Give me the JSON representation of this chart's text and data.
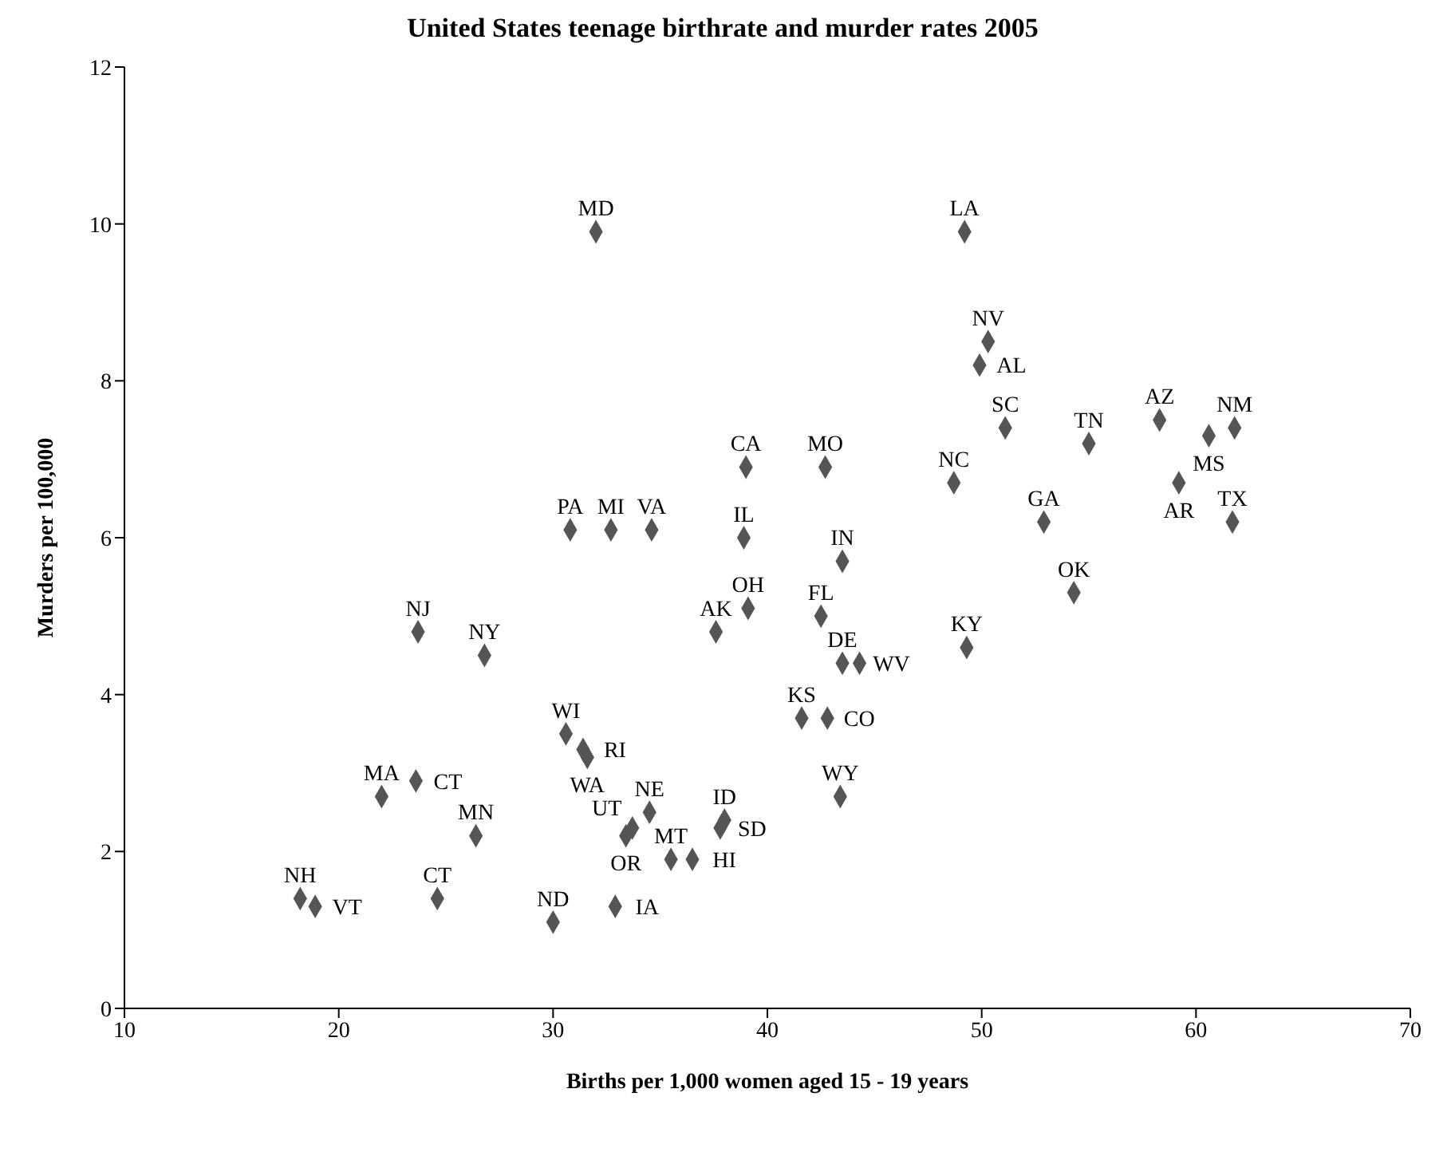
{
  "chart_data": {
    "type": "scatter",
    "title": "United States teenage birthrate and murder rates 2005",
    "xlabel": "Births per 1,000 women aged 15 - 19 years",
    "ylabel": "Murders per 100,000",
    "xlim": [
      10,
      70
    ],
    "xticks": [
      10,
      20,
      30,
      40,
      50,
      60,
      70
    ],
    "ylim": [
      0,
      12
    ],
    "yticks": [
      0,
      2,
      4,
      6,
      8,
      10,
      12
    ],
    "grid": false,
    "legend": false,
    "marker": "diamond",
    "series": [
      {
        "color": "#555555",
        "x": [
          32.0,
          49.2,
          50.3,
          49.9,
          51.1,
          55.0,
          58.3,
          60.6,
          61.8,
          59.2,
          61.7,
          52.9,
          54.3,
          48.7,
          49.3,
          39.0,
          42.7,
          30.8,
          32.7,
          34.6,
          38.9,
          43.5,
          39.1,
          37.6,
          42.5,
          43.5,
          44.3,
          41.6,
          42.8,
          43.4,
          23.7,
          26.8,
          30.6,
          31.4,
          31.6,
          22.0,
          23.6,
          26.4,
          34.5,
          33.4,
          33.7,
          35.5,
          36.5,
          38.0,
          37.8,
          24.6,
          30.0,
          32.9,
          18.2,
          18.9
        ],
        "values": [
          9.9,
          9.9,
          8.5,
          8.2,
          7.4,
          7.2,
          7.5,
          7.3,
          7.4,
          6.7,
          6.2,
          6.2,
          5.3,
          6.7,
          4.6,
          6.9,
          6.9,
          6.1,
          6.1,
          6.1,
          6.0,
          5.7,
          5.1,
          4.8,
          5.0,
          4.4,
          4.4,
          3.7,
          3.7,
          2.7,
          4.8,
          4.5,
          3.5,
          3.3,
          3.2,
          2.7,
          2.9,
          2.2,
          2.5,
          2.2,
          2.3,
          1.9,
          1.9,
          2.4,
          2.3,
          1.4,
          1.1,
          1.3,
          1.4,
          1.3
        ]
      }
    ],
    "annotations": [
      {
        "text": "MD",
        "x": 32.0,
        "y": 9.9
      },
      {
        "text": "LA",
        "x": 49.2,
        "y": 9.9
      },
      {
        "text": "NV",
        "x": 50.3,
        "y": 8.5
      },
      {
        "text": "AL",
        "x": 49.9,
        "y": 8.2
      },
      {
        "text": "SC",
        "x": 51.1,
        "y": 7.4
      },
      {
        "text": "TN",
        "x": 55.0,
        "y": 7.2
      },
      {
        "text": "AZ",
        "x": 58.3,
        "y": 7.5
      },
      {
        "text": "MS",
        "x": 60.6,
        "y": 7.3
      },
      {
        "text": "NM",
        "x": 61.8,
        "y": 7.4
      },
      {
        "text": "AR",
        "x": 59.2,
        "y": 6.7
      },
      {
        "text": "TX",
        "x": 61.7,
        "y": 6.2
      },
      {
        "text": "GA",
        "x": 52.9,
        "y": 6.2
      },
      {
        "text": "OK",
        "x": 54.3,
        "y": 5.3
      },
      {
        "text": "NC",
        "x": 48.7,
        "y": 6.7
      },
      {
        "text": "KY",
        "x": 49.3,
        "y": 4.6
      },
      {
        "text": "CA",
        "x": 39.0,
        "y": 6.9
      },
      {
        "text": "MO",
        "x": 42.7,
        "y": 6.9
      },
      {
        "text": "PA",
        "x": 30.8,
        "y": 6.1
      },
      {
        "text": "MI",
        "x": 32.7,
        "y": 6.1
      },
      {
        "text": "VA",
        "x": 34.6,
        "y": 6.1
      },
      {
        "text": "IL",
        "x": 38.9,
        "y": 6.0
      },
      {
        "text": "IN",
        "x": 43.5,
        "y": 5.7
      },
      {
        "text": "OH",
        "x": 39.1,
        "y": 5.1
      },
      {
        "text": "AK",
        "x": 37.6,
        "y": 4.8
      },
      {
        "text": "FL",
        "x": 42.5,
        "y": 5.0
      },
      {
        "text": "DE",
        "x": 43.5,
        "y": 4.4
      },
      {
        "text": "WV",
        "x": 44.3,
        "y": 4.4
      },
      {
        "text": "KS",
        "x": 41.6,
        "y": 3.7
      },
      {
        "text": "CO",
        "x": 42.8,
        "y": 3.7
      },
      {
        "text": "WY",
        "x": 43.4,
        "y": 2.7
      },
      {
        "text": "NJ",
        "x": 23.7,
        "y": 4.8
      },
      {
        "text": "NY",
        "x": 26.8,
        "y": 4.5
      },
      {
        "text": "WI",
        "x": 30.6,
        "y": 3.5
      },
      {
        "text": "RI",
        "x": 31.4,
        "y": 3.3
      },
      {
        "text": "WA",
        "x": 31.6,
        "y": 3.2
      },
      {
        "text": "MA",
        "x": 22.0,
        "y": 2.7
      },
      {
        "text": "CT",
        "x": 23.6,
        "y": 2.9
      },
      {
        "text": "MN",
        "x": 26.4,
        "y": 2.2
      },
      {
        "text": "NE",
        "x": 34.5,
        "y": 2.5
      },
      {
        "text": "OR",
        "x": 33.4,
        "y": 2.2
      },
      {
        "text": "UT",
        "x": 33.7,
        "y": 2.3
      },
      {
        "text": "MT",
        "x": 35.5,
        "y": 1.9
      },
      {
        "text": "HI",
        "x": 36.5,
        "y": 1.9
      },
      {
        "text": "ID",
        "x": 38.0,
        "y": 2.4
      },
      {
        "text": "SD",
        "x": 37.8,
        "y": 2.3
      },
      {
        "text": "CT",
        "x": 24.6,
        "y": 1.4
      },
      {
        "text": "ND",
        "x": 30.0,
        "y": 1.1
      },
      {
        "text": "IA",
        "x": 32.9,
        "y": 1.3
      },
      {
        "text": "NH",
        "x": 18.2,
        "y": 1.4
      },
      {
        "text": "VT",
        "x": 18.9,
        "y": 1.3
      }
    ]
  }
}
